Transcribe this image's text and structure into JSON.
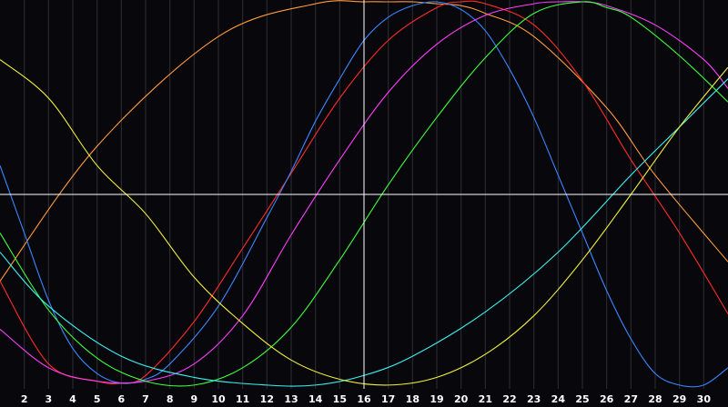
{
  "chart_data": {
    "type": "line",
    "x_ticks": [
      2,
      3,
      4,
      5,
      6,
      7,
      8,
      9,
      10,
      11,
      12,
      13,
      14,
      15,
      16,
      17,
      18,
      19,
      20,
      21,
      22,
      23,
      24,
      25,
      26,
      27,
      28,
      29,
      30
    ],
    "xlim": [
      1,
      31
    ],
    "ylim": [
      -1,
      1
    ],
    "crosshair": {
      "x": 16,
      "y": 0
    },
    "grid": true,
    "background_color": "#08080c",
    "grid_color": "#2c2c38",
    "crosshair_color": "#ffffff",
    "series": [
      {
        "color": "#ff9a3c",
        "x": [
          1,
          5,
          10,
          14,
          16,
          17,
          18,
          19,
          20,
          21,
          23,
          26,
          28,
          31
        ],
        "y": [
          -0.45,
          0.25,
          0.82,
          0.99,
          1.0,
          1.0,
          1.0,
          0.99,
          0.98,
          0.94,
          0.82,
          0.45,
          0.1,
          -0.35
        ]
      },
      {
        "color": "#ff2a2a",
        "x": [
          1,
          3,
          5,
          6,
          7,
          9,
          11,
          13,
          15,
          17,
          19,
          20,
          21,
          23,
          25,
          27,
          29,
          31
        ],
        "y": [
          -0.45,
          -0.88,
          -0.97,
          -0.98,
          -0.94,
          -0.66,
          -0.28,
          0.11,
          0.5,
          0.8,
          0.97,
          1.0,
          0.99,
          0.88,
          0.59,
          0.18,
          -0.2,
          -0.62
        ]
      },
      {
        "color": "#3a86ff",
        "x": [
          1,
          2,
          3,
          4,
          5,
          6,
          7,
          8,
          10,
          12,
          13,
          14,
          15,
          16,
          17,
          18,
          19,
          20,
          21,
          22,
          23,
          24,
          25,
          26,
          27,
          28,
          29,
          30,
          31
        ],
        "y": [
          0.15,
          -0.2,
          -0.55,
          -0.8,
          -0.93,
          -0.98,
          -0.96,
          -0.88,
          -0.58,
          -0.12,
          0.12,
          0.38,
          0.6,
          0.8,
          0.92,
          0.98,
          1.0,
          0.96,
          0.85,
          0.65,
          0.4,
          0.1,
          -0.2,
          -0.5,
          -0.75,
          -0.93,
          -0.99,
          -0.99,
          -0.9
        ]
      },
      {
        "color": "#ff3cff",
        "x": [
          1,
          3,
          5,
          7,
          9,
          11,
          13,
          15,
          17,
          19,
          21,
          23,
          24,
          25,
          26,
          28,
          30,
          31
        ],
        "y": [
          -0.7,
          -0.9,
          -0.97,
          -0.97,
          -0.88,
          -0.63,
          -0.21,
          0.18,
          0.53,
          0.78,
          0.93,
          0.99,
          1.0,
          1.0,
          0.98,
          0.88,
          0.7,
          0.55
        ]
      },
      {
        "color": "#3cff3c",
        "x": [
          1,
          3,
          5,
          7,
          9,
          11,
          13,
          15,
          17,
          19,
          21,
          23,
          25,
          26,
          27,
          29,
          31
        ],
        "y": [
          -0.2,
          -0.6,
          -0.85,
          -0.97,
          -0.99,
          -0.9,
          -0.69,
          -0.34,
          0.05,
          0.4,
          0.71,
          0.94,
          1.0,
          0.97,
          0.92,
          0.72,
          0.48
        ]
      },
      {
        "color": "#3cf0f0",
        "x": [
          1,
          3,
          6,
          9,
          12,
          14,
          16,
          18,
          21,
          24,
          27,
          29,
          31
        ],
        "y": [
          -0.3,
          -0.58,
          -0.84,
          -0.95,
          -0.99,
          -0.99,
          -0.94,
          -0.84,
          -0.61,
          -0.3,
          0.1,
          0.35,
          0.6
        ]
      },
      {
        "color": "#f0f03c",
        "x": [
          1,
          3,
          5,
          7,
          9,
          11,
          13,
          15,
          17,
          19,
          21,
          23,
          25,
          27,
          29,
          31
        ],
        "y": [
          0.7,
          0.5,
          0.15,
          -0.1,
          -0.43,
          -0.67,
          -0.86,
          -0.96,
          -0.99,
          -0.95,
          -0.83,
          -0.63,
          -0.34,
          0.0,
          0.35,
          0.66
        ]
      }
    ]
  }
}
